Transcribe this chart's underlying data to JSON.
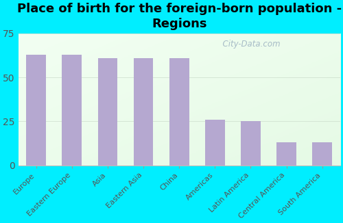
{
  "title": "Place of birth for the foreign-born population -\nRegions",
  "categories": [
    "Europe",
    "Eastern Europe",
    "Asia",
    "Eastern Asia",
    "China",
    "Americas",
    "Latin America",
    "Central America",
    "South America"
  ],
  "values": [
    63,
    63,
    61,
    61,
    61,
    26,
    25,
    13,
    13
  ],
  "bar_color": "#b5a8d0",
  "background_outer": "#00eeff",
  "ylim": [
    0,
    75
  ],
  "yticks": [
    0,
    25,
    50,
    75
  ],
  "title_fontsize": 13,
  "tick_fontsize": 10,
  "xlabel_fontsize": 8,
  "watermark": "  City-Data.com"
}
